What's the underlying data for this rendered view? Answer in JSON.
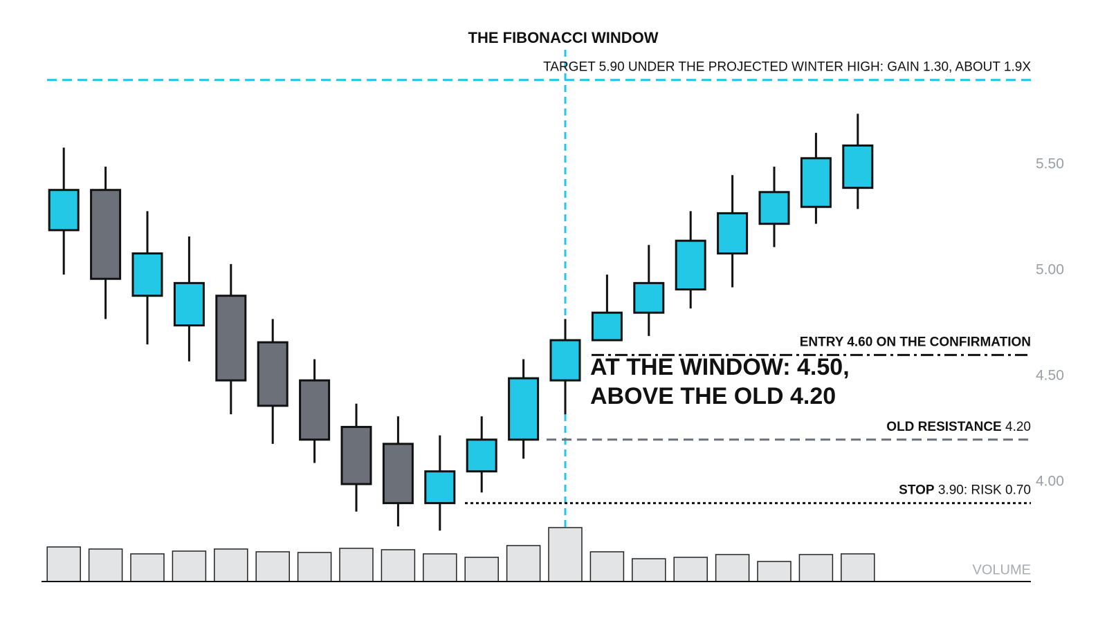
{
  "chart_data": {
    "type": "candlestick",
    "title": "THE FIBONACCI WINDOW",
    "categories": [
      null,
      null,
      null,
      null,
      null,
      null,
      null,
      null,
      null,
      null,
      null,
      null,
      null,
      null,
      null,
      null,
      null,
      null,
      null,
      null
    ],
    "open": [
      5.19,
      5.38,
      4.88,
      4.74,
      4.88,
      4.66,
      4.48,
      4.26,
      4.18,
      3.9,
      4.05,
      4.2,
      4.48,
      4.67,
      4.8,
      4.91,
      5.08,
      5.22,
      5.3,
      5.39
    ],
    "high": [
      5.58,
      5.49,
      5.28,
      5.16,
      5.03,
      4.77,
      4.58,
      4.37,
      4.31,
      4.22,
      4.31,
      4.58,
      4.77,
      4.98,
      5.12,
      5.28,
      5.45,
      5.49,
      5.65,
      5.74
    ],
    "low": [
      4.98,
      4.77,
      4.65,
      4.57,
      4.32,
      4.18,
      4.09,
      3.86,
      3.79,
      3.77,
      3.95,
      4.11,
      4.32,
      4.67,
      4.69,
      4.82,
      4.92,
      5.11,
      5.22,
      5.29
    ],
    "close": [
      5.38,
      4.96,
      5.08,
      4.94,
      4.48,
      4.36,
      4.2,
      3.99,
      3.9,
      4.05,
      4.2,
      4.49,
      4.67,
      4.8,
      4.94,
      5.14,
      5.27,
      5.37,
      5.53,
      5.59
    ],
    "up_color": "#22c8e5",
    "down_color": "#6b7079",
    "ylim": [
      3.75,
      6.0
    ],
    "yticks": [
      {
        "value": 4,
        "label": "4.00"
      },
      {
        "value": 4.5,
        "label": "4.50"
      },
      {
        "value": 5,
        "label": "5.00"
      },
      {
        "value": 5.5,
        "label": "5.50"
      }
    ],
    "reference_lines": [
      {
        "value": 5.9,
        "label_bold": "",
        "label": "TARGET 5.90 UNDER THE PROJECTED WINTER HIGH: GAIN 1.30, ABOUT 1.9X",
        "color": "#22c8e5",
        "style": "dashed"
      },
      {
        "value": 4.6,
        "label_bold": "ENTRY 4.60 ON THE CONFIRMATION",
        "label": "",
        "color": "#111111",
        "style": "dashdot"
      },
      {
        "value": 4.2,
        "label_bold": "OLD RESISTANCE",
        "label": "4.20",
        "color": "#6b7079",
        "style": "dashed"
      },
      {
        "value": 3.9,
        "label_bold": "STOP",
        "label": "3.90: RISK 0.70",
        "color": "#111111",
        "style": "dotted"
      }
    ],
    "annotation": [
      "AT THE WINDOW: 4.50,",
      "ABOVE THE OLD 4.20"
    ],
    "volume": {
      "label": "VOLUME",
      "values": [
        50,
        47,
        40,
        44,
        47,
        43,
        42,
        48,
        46,
        40,
        35,
        52,
        78,
        43,
        33,
        35,
        39,
        29,
        39,
        40
      ],
      "ylim": [
        0,
        100
      ],
      "color": "#e3e4e6"
    }
  }
}
